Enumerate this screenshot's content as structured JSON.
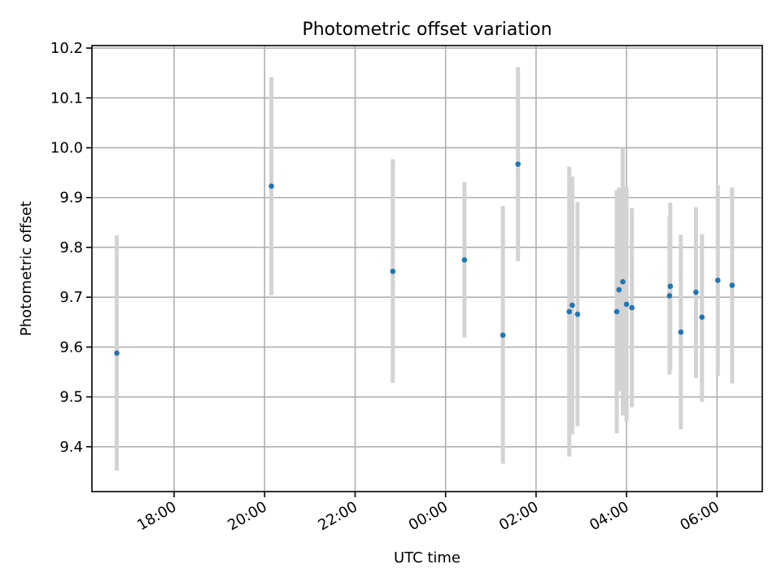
{
  "chart_data": {
    "type": "scatter",
    "title": "Photometric offset variation",
    "xlabel": "UTC time",
    "ylabel": "Photometric offset",
    "x_axis_kind": "time",
    "xlim": [
      "16:11",
      "07:00"
    ],
    "ylim": [
      9.31,
      10.205
    ],
    "grid": true,
    "x_ticks": [
      {
        "label": "18:00",
        "time": "18:00"
      },
      {
        "label": "20:00",
        "time": "20:00"
      },
      {
        "label": "22:00",
        "time": "22:00"
      },
      {
        "label": "00:00",
        "time": "00:00"
      },
      {
        "label": "02:00",
        "time": "02:00"
      },
      {
        "label": "04:00",
        "time": "04:00"
      },
      {
        "label": "06:00",
        "time": "06:00"
      }
    ],
    "y_ticks": [
      9.4,
      9.5,
      9.6,
      9.7,
      9.8,
      9.9,
      10.0,
      10.1,
      10.2
    ],
    "y_tick_labels": [
      "9.4",
      "9.5",
      "9.6",
      "9.7",
      "9.8",
      "9.9",
      "10.0",
      "10.1",
      "10.2"
    ],
    "point_color": "#1f77b4",
    "errorbar_color": "#d3d3d3",
    "points": [
      {
        "x": "16:44",
        "y": 9.588,
        "ylow": 9.352,
        "yhigh": 9.824
      },
      {
        "x": "20:09",
        "y": 9.923,
        "ylow": 9.704,
        "yhigh": 10.142
      },
      {
        "x": "22:50",
        "y": 9.752,
        "ylow": 9.528,
        "yhigh": 9.977
      },
      {
        "x": "00:25",
        "y": 9.775,
        "ylow": 9.619,
        "yhigh": 9.931
      },
      {
        "x": "01:16",
        "y": 9.624,
        "ylow": 9.366,
        "yhigh": 9.883
      },
      {
        "x": "01:36",
        "y": 9.967,
        "ylow": 9.772,
        "yhigh": 10.162
      },
      {
        "x": "02:44",
        "y": 9.671,
        "ylow": 9.38,
        "yhigh": 9.962
      },
      {
        "x": "02:48",
        "y": 9.684,
        "ylow": 9.425,
        "yhigh": 9.942
      },
      {
        "x": "02:55",
        "y": 9.666,
        "ylow": 9.441,
        "yhigh": 9.891
      },
      {
        "x": "03:47",
        "y": 9.671,
        "ylow": 9.427,
        "yhigh": 9.915
      },
      {
        "x": "03:50",
        "y": 9.715,
        "ylow": 9.511,
        "yhigh": 9.92
      },
      {
        "x": "03:55",
        "y": 9.731,
        "ylow": 9.463,
        "yhigh": 10.0
      },
      {
        "x": "04:00",
        "y": 9.686,
        "ylow": 9.45,
        "yhigh": 9.921
      },
      {
        "x": "04:07",
        "y": 9.679,
        "ylow": 9.479,
        "yhigh": 9.879
      },
      {
        "x": "04:57",
        "y": 9.703,
        "ylow": 9.545,
        "yhigh": 9.862
      },
      {
        "x": "04:58",
        "y": 9.722,
        "ylow": 9.553,
        "yhigh": 9.89
      },
      {
        "x": "05:12",
        "y": 9.63,
        "ylow": 9.435,
        "yhigh": 9.825
      },
      {
        "x": "05:32",
        "y": 9.71,
        "ylow": 9.538,
        "yhigh": 9.881
      },
      {
        "x": "05:40",
        "y": 9.66,
        "ylow": 9.49,
        "yhigh": 9.826
      },
      {
        "x": "06:01",
        "y": 9.734,
        "ylow": 9.542,
        "yhigh": 9.926
      },
      {
        "x": "06:20",
        "y": 9.724,
        "ylow": 9.527,
        "yhigh": 9.92
      }
    ]
  }
}
